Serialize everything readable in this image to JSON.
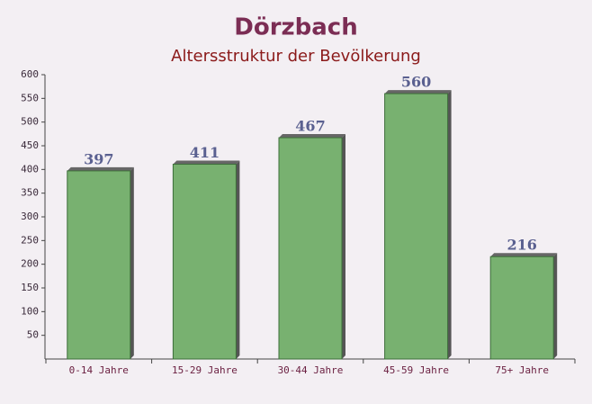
{
  "chart_data": {
    "type": "bar",
    "title": "Dörzbach",
    "subtitle": "Altersstruktur der Bevölkerung",
    "categories": [
      "0-14 Jahre",
      "15-29 Jahre",
      "30-44 Jahre",
      "45-59 Jahre",
      "75+ Jahre"
    ],
    "values": [
      397,
      411,
      467,
      560,
      216
    ],
    "color": "#6aaa62",
    "ylim": [
      0,
      600
    ],
    "yticks": [
      50,
      100,
      150,
      200,
      250,
      300,
      350,
      400,
      450,
      500,
      550,
      600
    ]
  }
}
